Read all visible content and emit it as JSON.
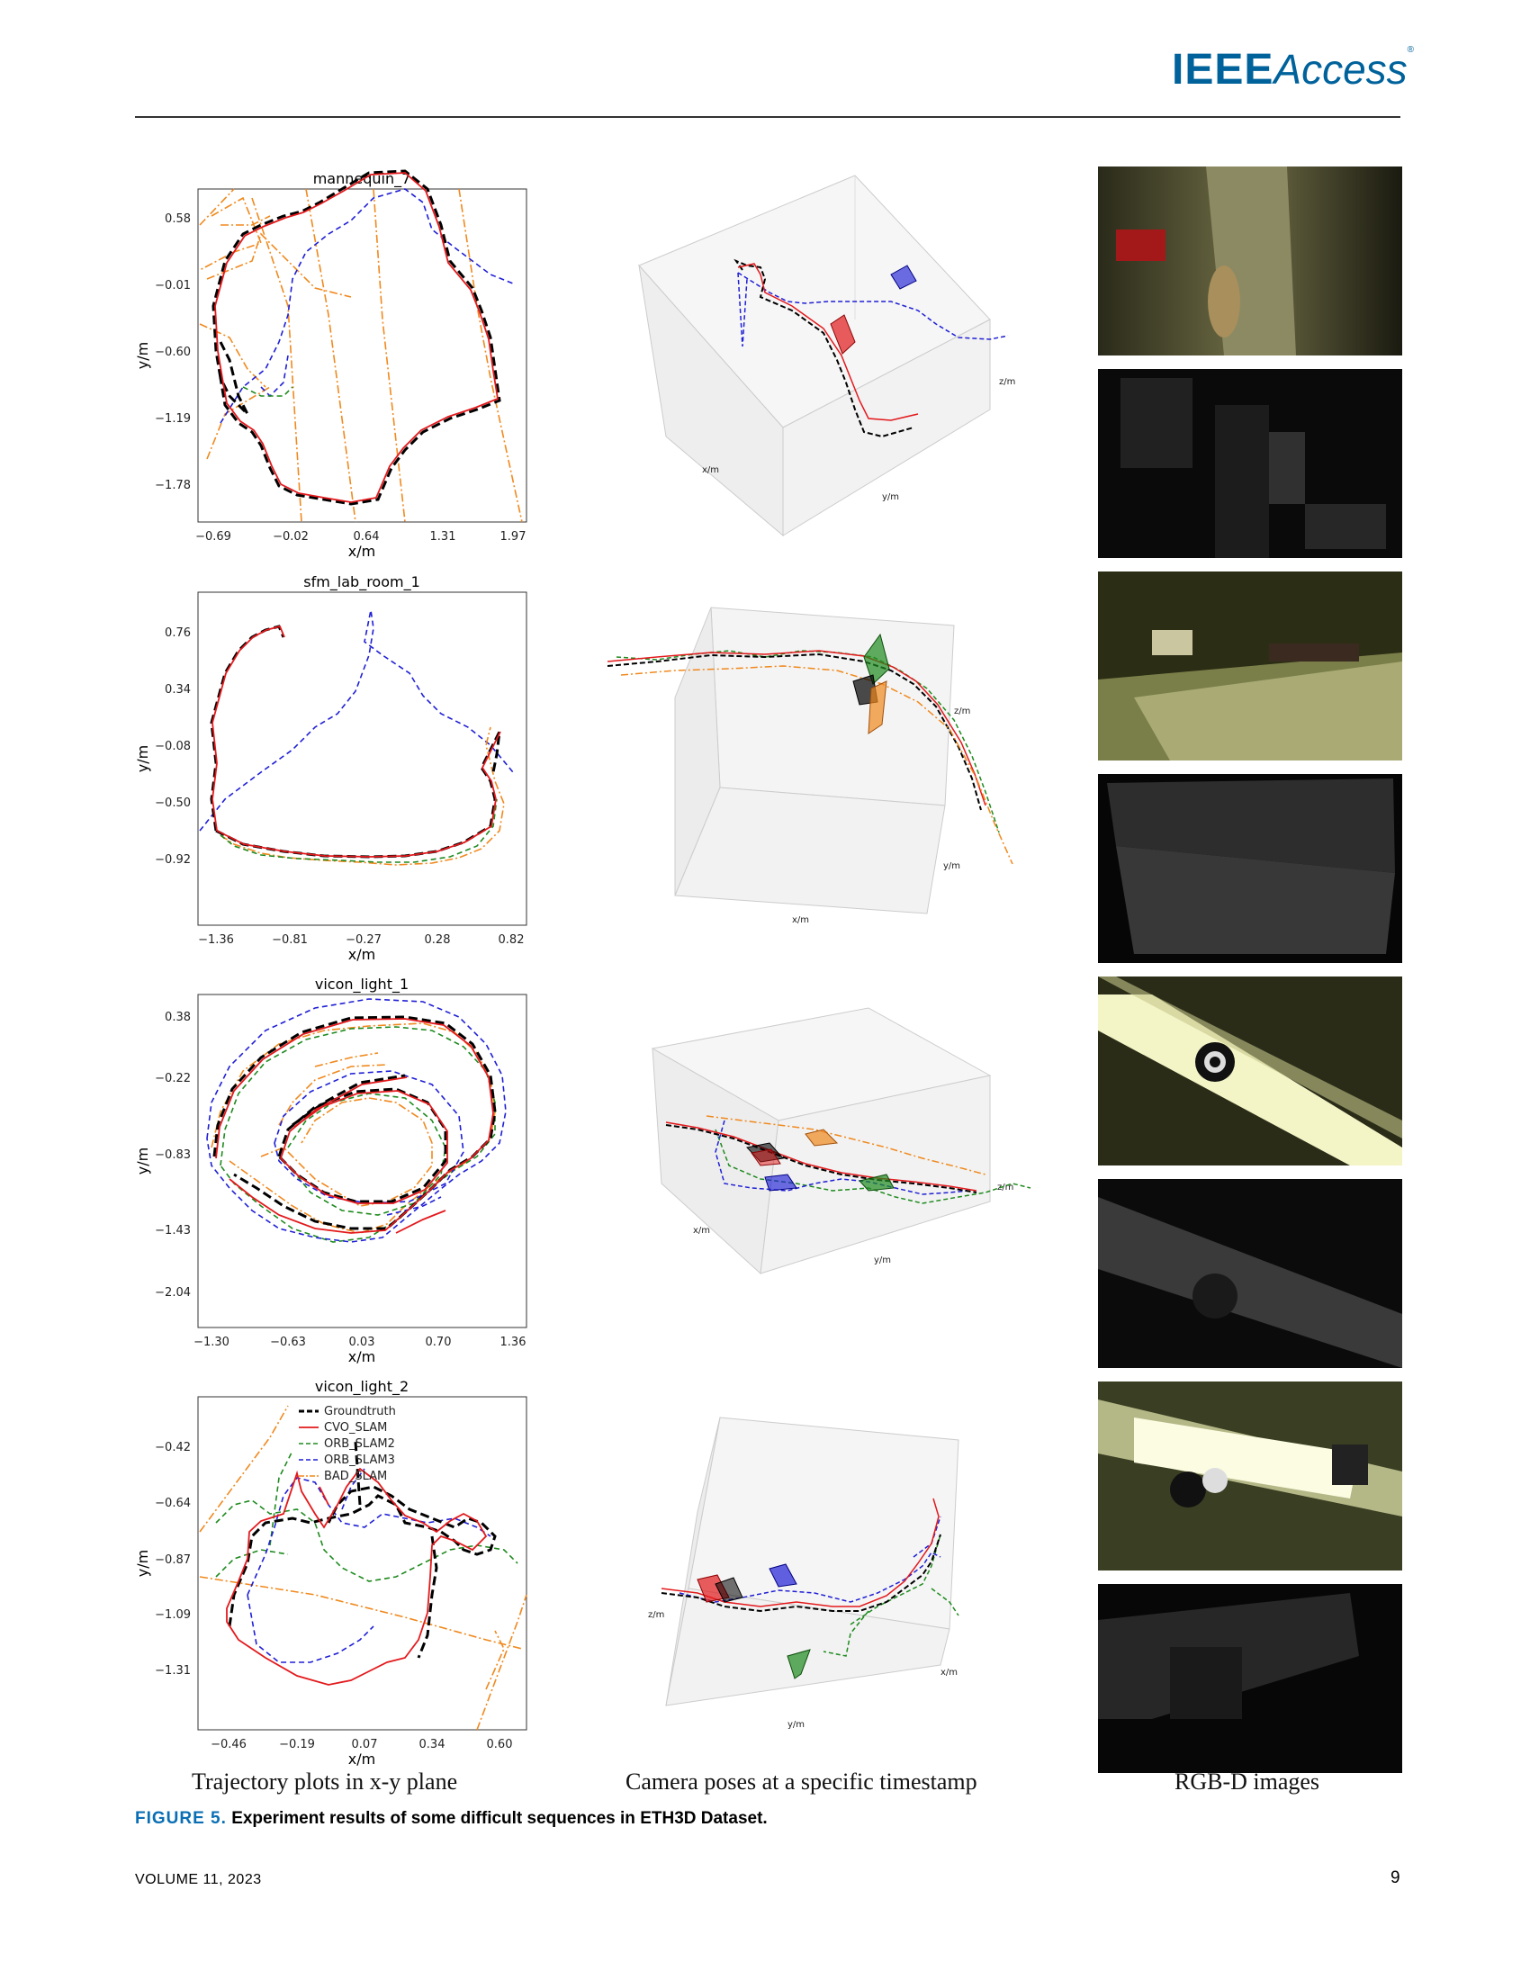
{
  "header": {
    "logo_ieee": "IEEE",
    "logo_access": "Access",
    "logo_tm": "®"
  },
  "legend": {
    "groundtruth": "Groundtruth",
    "cvo": "CVO_SLAM",
    "orb2": "ORB_SLAM2",
    "orb3": "ORB_SLAM3",
    "bad": "BAD_SLAM"
  },
  "colors": {
    "groundtruth": "#000000",
    "cvo": "#e3191c",
    "orb2": "#1e8a1e",
    "orb3": "#1f1fd6",
    "bad": "#f0891e"
  },
  "chart_data": [
    {
      "type": "line",
      "title": "mannequin_7",
      "xlabel": "x/m",
      "ylabel": "y/m",
      "xticks": [
        "−0.69",
        "−0.02",
        "0.64",
        "1.31",
        "1.97"
      ],
      "yticks": [
        "0.58",
        "−0.01",
        "−0.60",
        "−1.19",
        "−1.78"
      ],
      "series": [
        "Groundtruth",
        "CVO_SLAM",
        "ORB_SLAM2",
        "ORB_SLAM3",
        "BAD_SLAM"
      ]
    },
    {
      "type": "line",
      "title": "sfm_lab_room_1",
      "xlabel": "x/m",
      "ylabel": "y/m",
      "xticks": [
        "−1.36",
        "−0.81",
        "−0.27",
        "0.28",
        "0.82"
      ],
      "yticks": [
        "0.76",
        "0.34",
        "−0.08",
        "−0.50",
        "−0.92"
      ],
      "series": [
        "Groundtruth",
        "CVO_SLAM",
        "ORB_SLAM2",
        "ORB_SLAM3",
        "BAD_SLAM"
      ]
    },
    {
      "type": "line",
      "title": "vicon_light_1",
      "xlabel": "x/m",
      "ylabel": "y/m",
      "xticks": [
        "−1.30",
        "−0.63",
        "0.03",
        "0.70",
        "1.36"
      ],
      "yticks": [
        "0.38",
        "−0.22",
        "−0.83",
        "−1.43",
        "−2.04"
      ],
      "series": [
        "Groundtruth",
        "CVO_SLAM",
        "ORB_SLAM2",
        "ORB_SLAM3",
        "BAD_SLAM"
      ]
    },
    {
      "type": "line",
      "title": "vicon_light_2",
      "xlabel": "x/m",
      "ylabel": "y/m",
      "xticks": [
        "−0.46",
        "−0.19",
        "0.07",
        "0.34",
        "0.60"
      ],
      "yticks": [
        "−0.42",
        "−0.64",
        "−0.87",
        "−1.09",
        "−1.31"
      ],
      "legend_position": "top-right",
      "series": [
        "Groundtruth",
        "CVO_SLAM",
        "ORB_SLAM2",
        "ORB_SLAM3",
        "BAD_SLAM"
      ]
    }
  ],
  "axes3d": {
    "x": "x/m",
    "y": "y/m",
    "z": "z/m"
  },
  "column_labels": {
    "trajectory": "Trajectory plots in x-y plane",
    "poses": "Camera poses at a specific timestamp",
    "rgbd": "RGB-D images"
  },
  "caption": {
    "label": "FIGURE 5.",
    "text": "Experiment results of some difficult sequences in ETH3D Dataset."
  },
  "footer": {
    "volume": "VOLUME 11, 2023",
    "page": "9"
  }
}
